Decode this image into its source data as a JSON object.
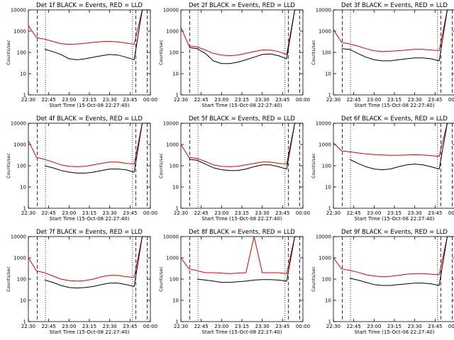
{
  "figure": {
    "title_template": "BLACK = Events, RED = LLD",
    "xlabel": "Start Time (15-Oct-08 22:27:40)",
    "ylabel": "Counts/sec",
    "xticks": [
      "22:30",
      "22:45",
      "23:00",
      "23:15",
      "23:30",
      "23:45",
      "00:00"
    ],
    "yticks": [
      "1",
      "10",
      "100",
      "1000",
      "10000"
    ],
    "colors": {
      "events": "#000000",
      "lld": "#e00000"
    }
  },
  "chart_data": [
    {
      "type": "line",
      "title": "Det 1f BLACK = Events, RED = LLD",
      "xlabel": "Start Time (15-Oct-08 22:27:40)",
      "ylabel": "Counts/sec",
      "yscale": "log",
      "ylim": [
        1,
        10000
      ],
      "x_minutes": [
        0,
        5,
        10,
        15,
        20,
        25,
        30,
        35,
        40,
        45,
        50,
        55,
        60,
        65,
        70,
        75
      ],
      "series": [
        {
          "name": "LLD",
          "values": [
            1800,
            500,
            420,
            330,
            260,
            240,
            250,
            270,
            300,
            320,
            330,
            310,
            280,
            240,
            10000,
            10000
          ]
        },
        {
          "name": "Events",
          "values": [
            null,
            null,
            140,
            110,
            80,
            50,
            45,
            50,
            60,
            70,
            80,
            75,
            60,
            45,
            10000,
            10000
          ]
        }
      ]
    },
    {
      "type": "line",
      "title": "Det 2f BLACK = Events, RED = LLD",
      "xlabel": "Start Time (15-Oct-08 22:27:40)",
      "ylabel": "Counts/sec",
      "yscale": "log",
      "ylim": [
        1,
        10000
      ],
      "x_minutes": [
        0,
        5,
        10,
        15,
        20,
        25,
        30,
        35,
        40,
        45,
        50,
        55,
        60,
        65,
        70,
        75
      ],
      "series": [
        {
          "name": "LLD",
          "values": [
            1500,
            200,
            180,
            130,
            90,
            75,
            70,
            75,
            90,
            110,
            130,
            130,
            110,
            80,
            10000,
            10000
          ]
        },
        {
          "name": "Events",
          "values": [
            null,
            170,
            150,
            90,
            40,
            30,
            30,
            35,
            45,
            60,
            80,
            85,
            70,
            50,
            10000,
            10000
          ]
        }
      ]
    },
    {
      "type": "line",
      "title": "Det 3f BLACK = Events, RED = LLD",
      "xlabel": "Start Time (15-Oct-08 22:27:40)",
      "ylabel": "Counts/sec",
      "yscale": "log",
      "ylim": [
        1,
        10000
      ],
      "x_minutes": [
        0,
        5,
        10,
        15,
        20,
        25,
        30,
        35,
        40,
        45,
        50,
        55,
        60,
        65,
        70,
        75
      ],
      "series": [
        {
          "name": "LLD",
          "values": [
            1200,
            300,
            250,
            200,
            150,
            120,
            110,
            115,
            120,
            130,
            140,
            140,
            130,
            120,
            10000,
            10000
          ]
        },
        {
          "name": "Events",
          "values": [
            null,
            150,
            140,
            90,
            60,
            45,
            40,
            40,
            45,
            50,
            55,
            55,
            50,
            40,
            10000,
            10000
          ]
        }
      ]
    },
    {
      "type": "line",
      "title": "Det 4f BLACK = Events, RED = LLD",
      "xlabel": "Start Time (15-Oct-08 22:27:40)",
      "ylabel": "Counts/sec",
      "yscale": "log",
      "ylim": [
        1,
        10000
      ],
      "x_minutes": [
        0,
        5,
        10,
        15,
        20,
        25,
        30,
        35,
        40,
        45,
        50,
        55,
        60,
        65,
        70,
        75
      ],
      "series": [
        {
          "name": "LLD",
          "values": [
            1500,
            250,
            200,
            150,
            110,
            95,
            90,
            95,
            110,
            130,
            150,
            150,
            130,
            120,
            10000,
            10000
          ]
        },
        {
          "name": "Events",
          "values": [
            null,
            null,
            100,
            80,
            60,
            50,
            45,
            45,
            50,
            60,
            70,
            70,
            65,
            50,
            10000,
            10000
          ]
        }
      ]
    },
    {
      "type": "line",
      "title": "Det 5f BLACK = Events, RED = LLD",
      "xlabel": "Start Time (15-Oct-08 22:27:40)",
      "ylabel": "Counts/sec",
      "yscale": "log",
      "ylim": [
        1,
        10000
      ],
      "x_minutes": [
        0,
        5,
        10,
        15,
        20,
        25,
        30,
        35,
        40,
        45,
        50,
        55,
        60,
        65,
        70,
        75
      ],
      "series": [
        {
          "name": "LLD",
          "values": [
            1000,
            250,
            220,
            160,
            110,
            95,
            90,
            95,
            110,
            130,
            150,
            150,
            130,
            120,
            10000,
            10000
          ]
        },
        {
          "name": "Events",
          "values": [
            null,
            200,
            180,
            120,
            80,
            65,
            60,
            60,
            70,
            90,
            110,
            110,
            90,
            70,
            10000,
            10000
          ]
        }
      ]
    },
    {
      "type": "line",
      "title": "Det 6f BLACK = Events, RED = LLD",
      "xlabel": "Start Time (15-Oct-08 22:27:40)",
      "ylabel": "Counts/sec",
      "yscale": "log",
      "ylim": [
        1,
        10000
      ],
      "x_minutes": [
        0,
        5,
        10,
        15,
        20,
        25,
        30,
        35,
        40,
        45,
        50,
        55,
        60,
        65,
        70,
        75
      ],
      "series": [
        {
          "name": "LLD",
          "values": [
            1200,
            500,
            450,
            400,
            360,
            340,
            320,
            310,
            310,
            320,
            330,
            320,
            300,
            280,
            10000,
            10000
          ]
        },
        {
          "name": "Events",
          "values": [
            null,
            null,
            200,
            130,
            90,
            70,
            65,
            70,
            90,
            110,
            120,
            110,
            90,
            70,
            10000,
            10000
          ]
        }
      ]
    },
    {
      "type": "line",
      "title": "Det 7f BLACK = Events, RED = LLD",
      "xlabel": "Start Time (15-Oct-08 22:27:40)",
      "ylabel": "Counts/sec",
      "yscale": "log",
      "ylim": [
        1,
        10000
      ],
      "x_minutes": [
        0,
        5,
        10,
        15,
        20,
        25,
        30,
        35,
        40,
        45,
        50,
        55,
        60,
        65,
        70,
        75
      ],
      "series": [
        {
          "name": "LLD",
          "values": [
            1000,
            240,
            200,
            140,
            100,
            85,
            80,
            85,
            100,
            130,
            150,
            150,
            130,
            120,
            10000,
            10000
          ]
        },
        {
          "name": "Events",
          "values": [
            null,
            null,
            90,
            70,
            50,
            40,
            38,
            40,
            45,
            55,
            65,
            65,
            55,
            45,
            10000,
            10000
          ]
        }
      ]
    },
    {
      "type": "line",
      "title": "Det 8f BLACK = Events, RED = LLD",
      "xlabel": "Start Time (15-Oct-08 22:27:40)",
      "ylabel": "Counts/sec",
      "yscale": "log",
      "ylim": [
        1,
        10000
      ],
      "x_minutes": [
        0,
        5,
        10,
        15,
        20,
        25,
        30,
        35,
        40,
        45,
        50,
        55,
        60,
        65,
        70,
        75
      ],
      "series": [
        {
          "name": "LLD",
          "values": [
            1000,
            300,
            250,
            200,
            200,
            190,
            180,
            190,
            200,
            10000,
            200,
            200,
            200,
            180,
            10000,
            10000
          ]
        },
        {
          "name": "Events",
          "values": [
            null,
            null,
            100,
            90,
            80,
            70,
            70,
            75,
            80,
            90,
            95,
            95,
            90,
            80,
            10000,
            10000
          ]
        }
      ]
    },
    {
      "type": "line",
      "title": "Det 9f BLACK = Events, RED = LLD",
      "xlabel": "Start Time (15-Oct-08 22:27:40)",
      "ylabel": "Counts/sec",
      "yscale": "log",
      "ylim": [
        1,
        10000
      ],
      "x_minutes": [
        0,
        5,
        10,
        15,
        20,
        25,
        30,
        35,
        40,
        45,
        50,
        55,
        60,
        65,
        70,
        75
      ],
      "series": [
        {
          "name": "LLD",
          "values": [
            1000,
            300,
            260,
            210,
            160,
            140,
            130,
            135,
            150,
            170,
            180,
            180,
            170,
            160,
            10000,
            10000
          ]
        },
        {
          "name": "Events",
          "values": [
            null,
            null,
            110,
            90,
            70,
            55,
            50,
            50,
            55,
            60,
            65,
            65,
            60,
            50,
            10000,
            10000
          ]
        }
      ]
    }
  ]
}
